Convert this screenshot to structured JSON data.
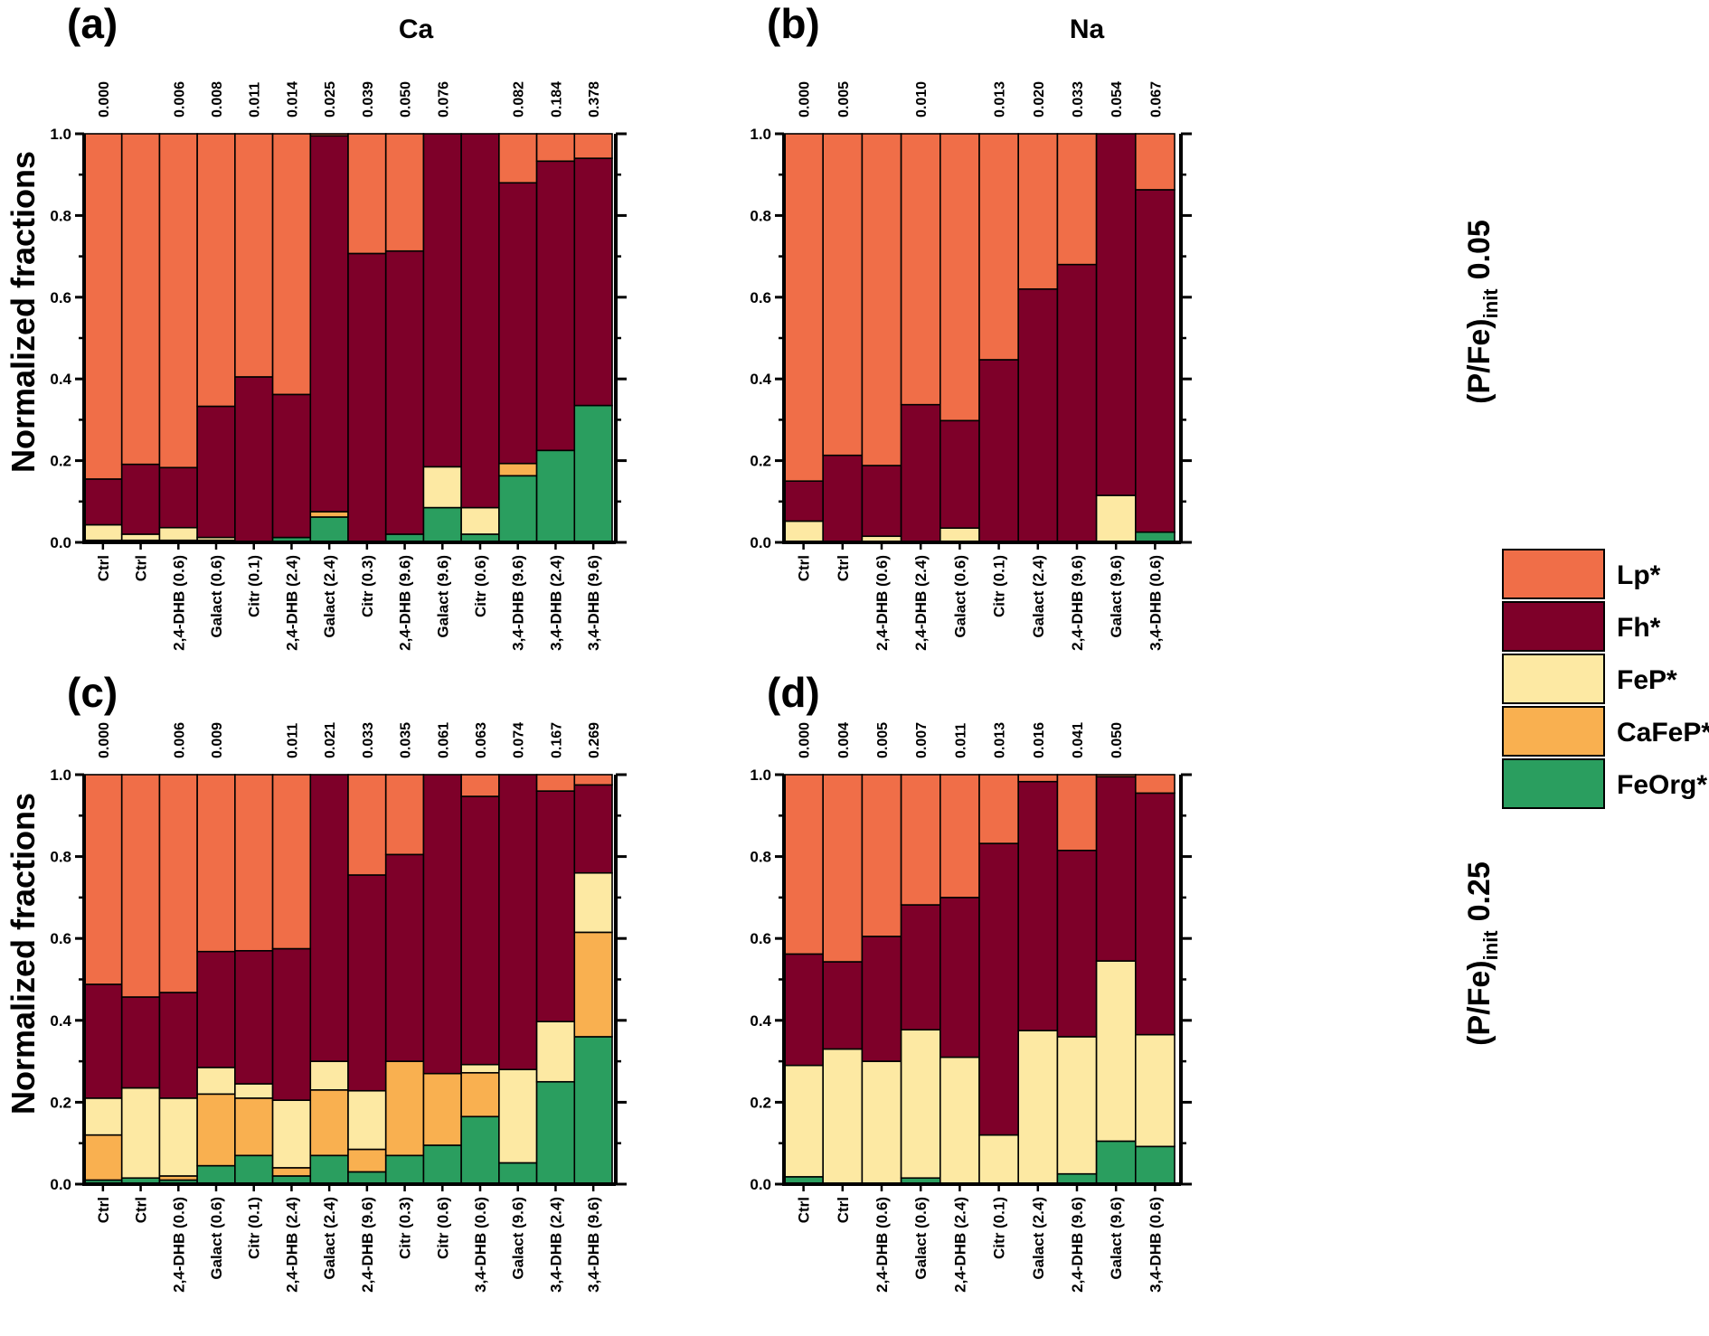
{
  "legend": [
    {
      "key": "Lp",
      "label": "Lp*",
      "color": "#f06e48"
    },
    {
      "key": "Fh",
      "label": "Fh*",
      "color": "#7e0029"
    },
    {
      "key": "FeP",
      "label": "FeP*",
      "color": "#fde9a3"
    },
    {
      "key": "CaFeP",
      "label": "CaFeP*",
      "color": "#f9b050"
    },
    {
      "key": "FeOrg",
      "label": "FeOrg*",
      "color": "#2a9e5f"
    }
  ],
  "y_title": "Normalized fractions",
  "y_ticks": [
    "0.0",
    "0.2",
    "0.4",
    "0.6",
    "0.8",
    "1.0"
  ],
  "column_titles": {
    "left": "Ca",
    "right": "Na"
  },
  "row_labels": {
    "top": {
      "main": "(P/Fe)",
      "sub": "init",
      "value": "0.05"
    },
    "bottom": {
      "main": "(P/Fe)",
      "sub": "init",
      "value": "0.25"
    }
  },
  "chart_data": [
    {
      "panel": "(a)",
      "type": "bar",
      "stacked": true,
      "column": "Ca",
      "ylim": [
        0,
        1
      ],
      "categories": [
        "Ctrl",
        "Ctrl",
        "2,4-DHB (0.6)",
        "Galact (0.6)",
        "Citr (0.1)",
        "2,4-DHB (2.4)",
        "Galact (2.4)",
        "Citr (0.3)",
        "2,4-DHB (9.6)",
        "Galact (9.6)",
        "Citr (0.6)",
        "3,4-DHB (9.6)",
        "3,4-DHB (2.4)",
        "3,4-DHB (9.6)"
      ],
      "top_labels": [
        "0.000",
        "",
        "0.006",
        "0.008",
        "0.011",
        "0.014",
        "0.025",
        "0.039",
        "0.050",
        "0.076",
        "",
        "0.082",
        "0.184",
        "0.378"
      ],
      "series": [
        {
          "name": "FeOrg*",
          "values": [
            0.005,
            0.005,
            0.005,
            0.005,
            0.0,
            0.012,
            0.062,
            0.0,
            0.02,
            0.085,
            0.02,
            0.163,
            0.225,
            0.335
          ]
        },
        {
          "name": "CaFeP*",
          "values": [
            0.0,
            0.0,
            0.0,
            0.0,
            0.0,
            0.0,
            0.013,
            0.0,
            0.0,
            0.0,
            0.0,
            0.03,
            0.0,
            0.0
          ]
        },
        {
          "name": "FeP*",
          "values": [
            0.038,
            0.015,
            0.031,
            0.007,
            0.0,
            0.0,
            0.0,
            0.0,
            0.0,
            0.1,
            0.065,
            0.0,
            0.0,
            0.0
          ]
        },
        {
          "name": "Fh*",
          "values": [
            0.112,
            0.171,
            0.147,
            0.321,
            0.405,
            0.35,
            0.92,
            0.707,
            0.693,
            0.815,
            0.915,
            0.687,
            0.708,
            0.605
          ]
        },
        {
          "name": "Lp*",
          "values": [
            0.845,
            0.809,
            0.817,
            0.667,
            0.595,
            0.638,
            0.005,
            0.293,
            0.287,
            0.0,
            0.0,
            0.12,
            0.067,
            0.06
          ]
        }
      ]
    },
    {
      "panel": "(b)",
      "type": "bar",
      "stacked": true,
      "column": "Na",
      "ylim": [
        0,
        1
      ],
      "categories": [
        "Ctrl",
        "Ctrl",
        "2,4-DHB (0.6)",
        "2,4-DHB (2.4)",
        "Galact (0.6)",
        "Citr (0.1)",
        "Galact (2.4)",
        "2,4-DHB (9.6)",
        "Galact (9.6)",
        "3,4-DHB (0.6)"
      ],
      "top_labels": [
        "0.000",
        "0.005",
        "",
        "0.010",
        "",
        "0.013",
        "0.020",
        "0.033",
        "0.054",
        "0.067"
      ],
      "series": [
        {
          "name": "FeOrg*",
          "values": [
            0.0,
            0.0,
            0.0,
            0.0,
            0.0,
            0.0,
            0.0,
            0.0,
            0.0,
            0.025
          ]
        },
        {
          "name": "CaFeP*",
          "values": [
            0.0,
            0.0,
            0.0,
            0.0,
            0.0,
            0.0,
            0.0,
            0.0,
            0.0,
            0.0
          ]
        },
        {
          "name": "FeP*",
          "values": [
            0.052,
            0.0,
            0.015,
            0.0,
            0.035,
            0.0,
            0.0,
            0.0,
            0.115,
            0.0
          ]
        },
        {
          "name": "Fh*",
          "values": [
            0.098,
            0.213,
            0.173,
            0.337,
            0.263,
            0.447,
            0.62,
            0.68,
            0.885,
            0.838
          ]
        },
        {
          "name": "Lp*",
          "values": [
            0.85,
            0.787,
            0.812,
            0.663,
            0.702,
            0.553,
            0.38,
            0.32,
            0.0,
            0.137
          ]
        }
      ]
    },
    {
      "panel": "(c)",
      "type": "bar",
      "stacked": true,
      "column": "Ca",
      "ylim": [
        0,
        1
      ],
      "categories": [
        "Ctrl",
        "Ctrl",
        "2,4-DHB (0.6)",
        "Galact (0.6)",
        "Citr (0.1)",
        "2,4-DHB (2.4)",
        "Galact (2.4)",
        "2,4-DHB (9.6)",
        "Citr (0.3)",
        "Citr (0.6)",
        "3,4-DHB (0.6)",
        "Galact (9.6)",
        "3,4-DHB (2.4)",
        "3,4-DHB (9.6)"
      ],
      "top_labels": [
        "0.000",
        "",
        "0.006",
        "0.009",
        "",
        "0.011",
        "0.021",
        "0.033",
        "0.035",
        "0.061",
        "0.063",
        "0.074",
        "0.167",
        "0.269"
      ],
      "series": [
        {
          "name": "FeOrg*",
          "values": [
            0.01,
            0.015,
            0.01,
            0.045,
            0.07,
            0.02,
            0.07,
            0.03,
            0.07,
            0.095,
            0.165,
            0.052,
            0.25,
            0.36
          ]
        },
        {
          "name": "CaFeP*",
          "values": [
            0.11,
            0.0,
            0.01,
            0.175,
            0.14,
            0.02,
            0.16,
            0.055,
            0.23,
            0.175,
            0.107,
            0.0,
            0.0,
            0.255
          ]
        },
        {
          "name": "FeP*",
          "values": [
            0.09,
            0.22,
            0.19,
            0.065,
            0.035,
            0.165,
            0.07,
            0.143,
            0.0,
            0.0,
            0.02,
            0.228,
            0.147,
            0.145
          ]
        },
        {
          "name": "Fh*",
          "values": [
            0.278,
            0.222,
            0.258,
            0.283,
            0.325,
            0.37,
            0.7,
            0.527,
            0.505,
            0.73,
            0.655,
            0.72,
            0.563,
            0.215
          ]
        },
        {
          "name": "Lp*",
          "values": [
            0.512,
            0.543,
            0.532,
            0.432,
            0.43,
            0.425,
            0.0,
            0.245,
            0.195,
            0.0,
            0.053,
            0.0,
            0.04,
            0.025
          ]
        }
      ]
    },
    {
      "panel": "(d)",
      "type": "bar",
      "stacked": true,
      "column": "Na",
      "ylim": [
        0,
        1
      ],
      "categories": [
        "Ctrl",
        "Ctrl",
        "2,4-DHB (0.6)",
        "Galact (0.6)",
        "2,4-DHB (2.4)",
        "Citr (0.1)",
        "Galact (2.4)",
        "2,4-DHB (9.6)",
        "Galact (9.6)",
        "3,4-DHB (0.6)"
      ],
      "top_labels": [
        "0.000",
        "0.004",
        "0.005",
        "0.007",
        "0.011",
        "0.013",
        "0.016",
        "0.041",
        "0.050",
        ""
      ],
      "series": [
        {
          "name": "FeOrg*",
          "values": [
            0.018,
            0.0,
            0.0,
            0.015,
            0.0,
            0.0,
            0.0,
            0.025,
            0.105,
            0.092
          ]
        },
        {
          "name": "CaFeP*",
          "values": [
            0.0,
            0.0,
            0.0,
            0.0,
            0.0,
            0.0,
            0.0,
            0.0,
            0.0,
            0.0
          ]
        },
        {
          "name": "FeP*",
          "values": [
            0.272,
            0.33,
            0.3,
            0.362,
            0.31,
            0.12,
            0.375,
            0.335,
            0.44,
            0.273
          ]
        },
        {
          "name": "Fh*",
          "values": [
            0.272,
            0.213,
            0.305,
            0.305,
            0.39,
            0.712,
            0.608,
            0.455,
            0.45,
            0.59
          ]
        },
        {
          "name": "Lp*",
          "values": [
            0.438,
            0.457,
            0.395,
            0.318,
            0.3,
            0.168,
            0.017,
            0.185,
            0.005,
            0.045
          ]
        }
      ]
    }
  ]
}
